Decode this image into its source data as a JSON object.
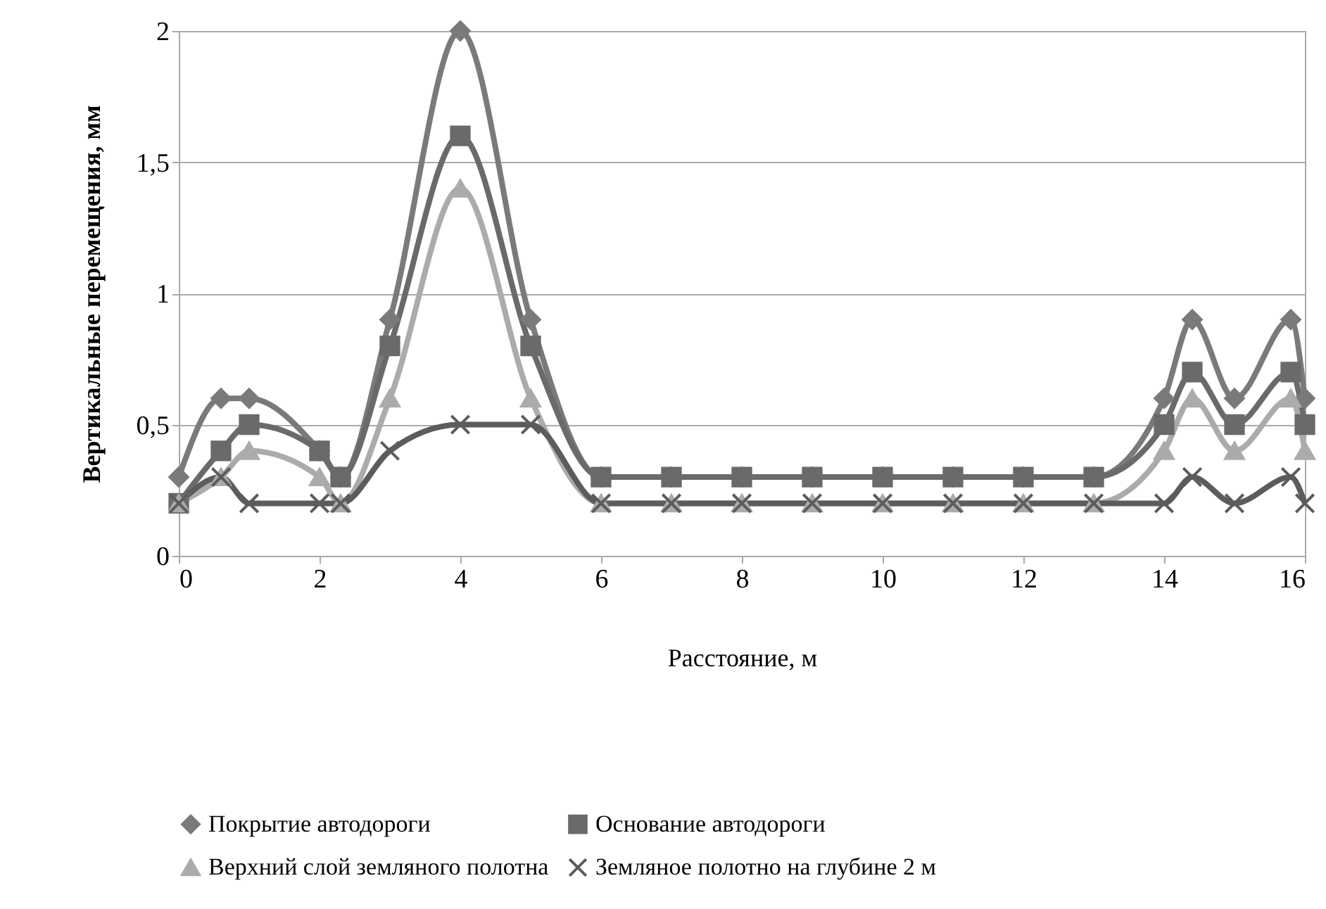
{
  "chart_data": {
    "type": "line",
    "xlabel": "Расстояние, м",
    "ylabel": "Вертикальные перемещения, мм",
    "x": [
      0,
      0.6,
      1,
      2,
      2.3,
      3,
      4,
      5,
      6,
      7,
      8,
      9,
      10,
      11,
      12,
      13,
      14,
      14.4,
      15,
      15.8,
      16
    ],
    "series": [
      {
        "name": "Покрытие автодороги",
        "color": "#7a7a7a",
        "marker": "diamond",
        "values": [
          0.3,
          0.6,
          0.6,
          0.4,
          0.3,
          0.9,
          2,
          0.9,
          0.3,
          0.3,
          0.3,
          0.3,
          0.3,
          0.3,
          0.3,
          0.3,
          0.6,
          0.9,
          0.6,
          0.9,
          0.6
        ]
      },
      {
        "name": "Основание автодороги",
        "color": "#6a6a6a",
        "marker": "square",
        "values": [
          0.2,
          0.4,
          0.5,
          0.4,
          0.3,
          0.8,
          1.6,
          0.8,
          0.3,
          0.3,
          0.3,
          0.3,
          0.3,
          0.3,
          0.3,
          0.3,
          0.5,
          0.7,
          0.5,
          0.7,
          0.5
        ]
      },
      {
        "name": "Верхний слой земляного полотна",
        "color": "#ababab",
        "marker": "triangle",
        "values": [
          0.2,
          0.3,
          0.4,
          0.3,
          0.2,
          0.6,
          1.4,
          0.6,
          0.2,
          0.2,
          0.2,
          0.2,
          0.2,
          0.2,
          0.2,
          0.2,
          0.4,
          0.6,
          0.4,
          0.6,
          0.4
        ]
      },
      {
        "name": "Земляное полотно на глубине 2 м",
        "color": "#5c5c5c",
        "marker": "cross",
        "values": [
          0.2,
          0.3,
          0.2,
          0.2,
          0.2,
          0.4,
          0.5,
          0.5,
          0.2,
          0.2,
          0.2,
          0.2,
          0.2,
          0.2,
          0.2,
          0.2,
          0.2,
          0.3,
          0.2,
          0.3,
          0.2
        ]
      }
    ],
    "xlim": [
      0,
      16
    ],
    "xticks": [
      0,
      2,
      4,
      6,
      8,
      10,
      12,
      14,
      16
    ],
    "ylim": [
      0,
      2
    ],
    "yticks": [
      0,
      {
        "value": 0.5,
        "label": "0,5"
      },
      1,
      {
        "value": 1.5,
        "label": "1,5"
      },
      2
    ],
    "grid": "y",
    "legend": "bottom",
    "line_style": "solid"
  }
}
